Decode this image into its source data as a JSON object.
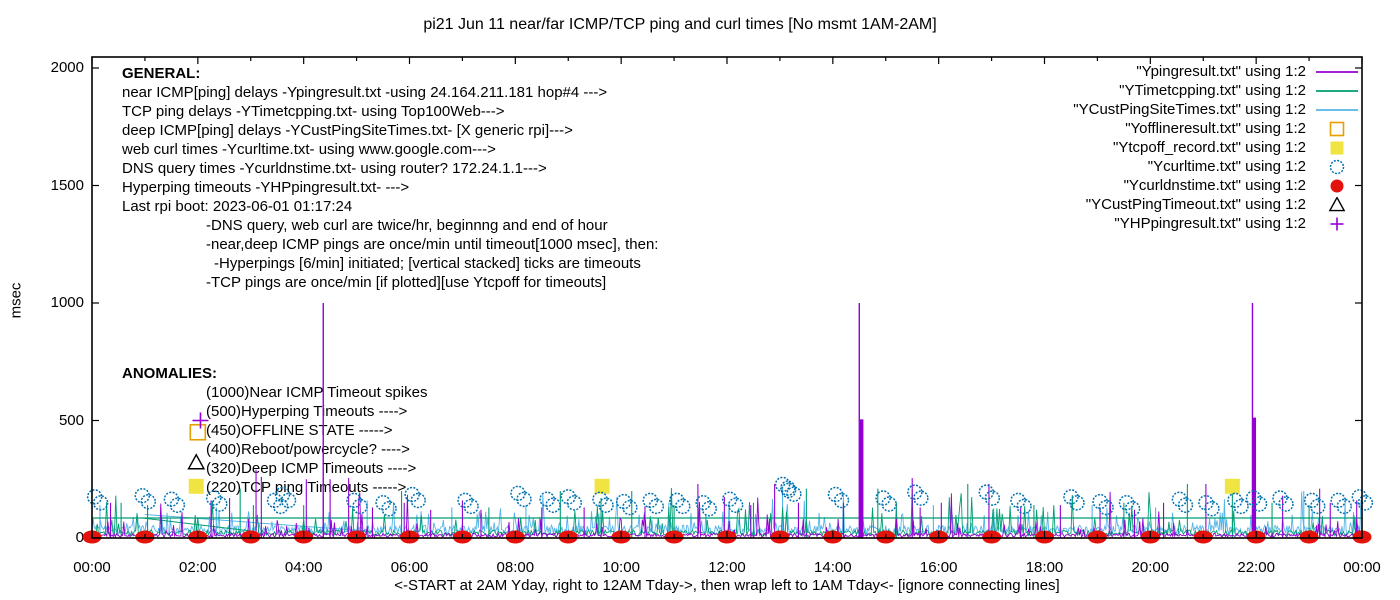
{
  "palette": {
    "purple": "#9400d3",
    "teal": "#009e73",
    "light_blue": "#56b4e9",
    "orange": "#e69f00",
    "yellow": "#f0e442",
    "blue": "#0072b2",
    "red": "#e3120b",
    "black": "#000000",
    "axis": "#000000",
    "background": "#ffffff"
  },
  "title": "pi21 Jun 11  near/far ICMP/TCP ping and curl times [No msmt 1AM-2AM]",
  "axes": {
    "y_label": "msec",
    "x_label": "<-START at 2AM Yday, right to 12AM Tday->, then wrap left to 1AM Tday<- [ignore connecting lines]",
    "x_ticks": [
      "00:00",
      "02:00",
      "04:00",
      "06:00",
      "08:00",
      "10:00",
      "12:00",
      "14:00",
      "16:00",
      "18:00",
      "20:00",
      "22:00",
      "00:00"
    ],
    "y_ticks": [
      "0",
      "500",
      "1000",
      "1500",
      "2000"
    ]
  },
  "general": {
    "heading": "GENERAL:",
    "lines": [
      "near ICMP[ping] delays -Ypingresult.txt -using 24.164.211.181 hop#4 --->",
      "TCP ping delays -YTimetcpping.txt- using Top100Web--->",
      "deep ICMP[ping] delays -YCustPingSiteTimes.txt- [X generic rpi]--->",
      "web curl times -Ycurltime.txt- using www.google.com--->",
      "DNS query times -Ycurldnstime.txt- using router? 172.24.1.1--->",
      "Hyperping timeouts -YHPpingresult.txt- --->",
      "Last rpi boot: 2023-06-01 01:17:24"
    ],
    "notes": [
      "-DNS query, web curl are twice/hr, beginnng and end of hour",
      "-near,deep ICMP pings are once/min until timeout[1000 msec], then:",
      "-Hyperpings [6/min] initiated; [vertical stacked] ticks are timeouts",
      "-TCP pings are once/min [if plotted][use Ytcpoff for timeouts]"
    ]
  },
  "anomalies": {
    "heading": "ANOMALIES:",
    "lines": [
      "(1000)Near ICMP Timeout spikes",
      "(500)Hyperping Timeouts ---->",
      "(450)OFFLINE STATE ----->",
      "(400)Reboot/powercycle? ---->",
      "(320)Deep ICMP Timeouts ---->",
      "(220)TCP ping Timeouts ----->"
    ]
  },
  "legend": {
    "entries": [
      {
        "label": "\"Ypingresult.txt\" using 1:2",
        "marker": "line",
        "color": "purple"
      },
      {
        "label": "\"YTimetcpping.txt\" using 1:2",
        "marker": "line",
        "color": "teal"
      },
      {
        "label": "\"YCustPingSiteTimes.txt\" using 1:2",
        "marker": "line",
        "color": "light_blue"
      },
      {
        "label": "\"Yofflineresult.txt\" using 1:2",
        "marker": "open-square",
        "color": "orange"
      },
      {
        "label": "\"Ytcpoff_record.txt\" using 1:2",
        "marker": "filled-square",
        "color": "yellow"
      },
      {
        "label": "\"Ycurltime.txt\" using 1:2",
        "marker": "open-circle",
        "color": "blue"
      },
      {
        "label": "\"Ycurldnstime.txt\" using 1:2",
        "marker": "filled-circle",
        "color": "red"
      },
      {
        "label": "\"YCustPingTimeout.txt\" using 1:2",
        "marker": "open-triangle",
        "color": "black"
      },
      {
        "label": "\"YHPpingresult.txt\" using 1:2",
        "marker": "plus",
        "color": "purple"
      }
    ]
  },
  "chart_data": {
    "type": "line",
    "title": "pi21 Jun 11  near/far ICMP/TCP ping and curl times [No msmt 1AM-2AM]",
    "xlabel": "<-START at 2AM Yday, right to 12AM Tday->, then wrap left to 1AM Tday<- [ignore connecting lines]",
    "ylabel": "msec",
    "x_unit": "hours",
    "xlim": [
      0,
      24
    ],
    "ylim": [
      0,
      2047
    ],
    "x_tick_hours": [
      0,
      2,
      4,
      6,
      8,
      10,
      12,
      14,
      16,
      18,
      20,
      22,
      24
    ],
    "y_tick_values": [
      0,
      500,
      1000,
      1500,
      2000
    ],
    "grid": false,
    "legend_position": "top-right",
    "series": [
      {
        "name": "Ypingresult.txt",
        "desc": "near ICMP ping delays",
        "color": "purple",
        "style": "noisy-line",
        "noise": {
          "seed": 11,
          "step": 0.02,
          "base": 4,
          "amp": 16,
          "p1": 0.06,
          "lo1": 28,
          "hi1": 85,
          "p2": 0.012,
          "lo2": 95,
          "hi2": 215
        },
        "spikes": [
          [
            0.35,
            150
          ],
          [
            2.25,
            160
          ],
          [
            2.6,
            170
          ],
          [
            3.1,
            290
          ],
          [
            3.2,
            260
          ],
          [
            4.05,
            250
          ],
          [
            4.5,
            250
          ],
          [
            4.85,
            255
          ],
          [
            5.3,
            130
          ],
          [
            5.9,
            150
          ],
          [
            6.4,
            120
          ],
          [
            7.0,
            160
          ],
          [
            7.35,
            120
          ],
          [
            8.5,
            130
          ],
          [
            9.3,
            130
          ],
          [
            10.45,
            135
          ],
          [
            11.45,
            230
          ],
          [
            11.95,
            175
          ],
          [
            12.45,
            140
          ],
          [
            12.9,
            230
          ],
          [
            13.35,
            150
          ],
          [
            14.2,
            150
          ],
          [
            15.5,
            255
          ],
          [
            15.65,
            130
          ],
          [
            16.05,
            150
          ],
          [
            16.95,
            230
          ],
          [
            17.55,
            130
          ],
          [
            18.3,
            140
          ],
          [
            19.05,
            130
          ],
          [
            19.7,
            120
          ],
          [
            20.25,
            150
          ],
          [
            21.05,
            230
          ],
          [
            22.5,
            180
          ],
          [
            23.2,
            210
          ],
          [
            23.4,
            150
          ],
          [
            23.9,
            160
          ]
        ],
        "timeout_spikes": [
          [
            4.37,
            1000
          ],
          [
            14.5,
            1000
          ],
          [
            21.93,
            1000
          ]
        ]
      },
      {
        "name": "YTimetcpping.txt",
        "desc": "TCP ping delays",
        "color": "teal",
        "style": "noisy-line",
        "noise": {
          "seed": 22,
          "step": 0.025,
          "base": 10,
          "amp": 24,
          "p1": 0.05,
          "lo1": 50,
          "hi1": 140,
          "p2": 0.008,
          "lo2": 150,
          "hi2": 220
        },
        "plateau": 85,
        "connecting_line": [
          [
            0.95,
            85
          ],
          [
            3.0,
            30
          ]
        ],
        "spikes": [
          [
            0.55,
            150
          ],
          [
            1.05,
            140
          ],
          [
            2.8,
            210
          ],
          [
            3.05,
            140
          ],
          [
            4.0,
            140
          ],
          [
            5.85,
            200
          ],
          [
            7.5,
            130
          ],
          [
            8.85,
            200
          ],
          [
            9.62,
            170
          ],
          [
            10.2,
            200
          ],
          [
            11.0,
            140
          ],
          [
            12.5,
            150
          ],
          [
            13.5,
            210
          ],
          [
            14.85,
            210
          ],
          [
            15.2,
            150
          ],
          [
            16.55,
            230
          ],
          [
            17.8,
            140
          ],
          [
            19.5,
            150
          ],
          [
            20.7,
            230
          ],
          [
            21.55,
            235
          ],
          [
            22.3,
            150
          ],
          [
            23.0,
            140
          ]
        ]
      },
      {
        "name": "YCustPingSiteTimes.txt",
        "desc": "deep ICMP ping delays",
        "color": "light_blue",
        "style": "noisy-line",
        "noise": {
          "seed": 33,
          "step": 0.02,
          "base": 14,
          "amp": 40,
          "p1": 0.08,
          "lo1": 60,
          "hi1": 115,
          "p2": 0.01,
          "lo2": 120,
          "hi2": 200
        },
        "connecting_line": [
          [
            1.0,
            100
          ],
          [
            5.2,
            30
          ]
        ],
        "spikes": [
          [
            0.15,
            140
          ],
          [
            2.35,
            130
          ],
          [
            5.2,
            160
          ],
          [
            6.8,
            130
          ],
          [
            8.2,
            140
          ],
          [
            10.9,
            150
          ],
          [
            13.05,
            215
          ],
          [
            15.9,
            140
          ],
          [
            18.9,
            140
          ],
          [
            20.1,
            130
          ],
          [
            22.9,
            200
          ]
        ]
      },
      {
        "name": "Yofflineresult.txt",
        "desc": "offline state marker",
        "color": "orange",
        "style": "points",
        "marker": "open-square",
        "points": [
          [
            2.0,
            450
          ]
        ]
      },
      {
        "name": "Ytcpoff_record.txt",
        "desc": "TCP ping timeouts",
        "color": "yellow",
        "style": "points",
        "marker": "filled-square",
        "points": [
          [
            1.97,
            220
          ],
          [
            9.64,
            220
          ],
          [
            21.55,
            220
          ]
        ]
      },
      {
        "name": "Ycurltime.txt",
        "desc": "web curl times",
        "color": "blue",
        "style": "points",
        "marker": "open-circle",
        "paired": true,
        "points": [
          [
            0.05,
            175
          ],
          [
            0.95,
            180
          ],
          [
            1.5,
            165
          ],
          [
            2.3,
            170
          ],
          [
            3.45,
            160
          ],
          [
            3.6,
            185
          ],
          [
            4.95,
            160
          ],
          [
            5.5,
            150
          ],
          [
            6.05,
            185
          ],
          [
            7.05,
            160
          ],
          [
            8.05,
            190
          ],
          [
            8.6,
            165
          ],
          [
            9.0,
            175
          ],
          [
            9.6,
            165
          ],
          [
            10.05,
            155
          ],
          [
            10.55,
            160
          ],
          [
            11.05,
            160
          ],
          [
            11.55,
            150
          ],
          [
            12.05,
            165
          ],
          [
            13.05,
            228
          ],
          [
            13.15,
            212
          ],
          [
            14.05,
            185
          ],
          [
            14.95,
            170
          ],
          [
            15.55,
            195
          ],
          [
            16.9,
            195
          ],
          [
            17.5,
            160
          ],
          [
            18.5,
            175
          ],
          [
            19.05,
            155
          ],
          [
            19.55,
            150
          ],
          [
            20.55,
            165
          ],
          [
            21.05,
            150
          ],
          [
            21.6,
            160
          ],
          [
            21.95,
            170
          ],
          [
            22.45,
            170
          ],
          [
            23.05,
            160
          ],
          [
            23.55,
            160
          ],
          [
            23.95,
            175
          ]
        ]
      },
      {
        "name": "Ycurldnstime.txt",
        "desc": "DNS query times",
        "color": "red",
        "style": "points",
        "marker": "filled-circle",
        "value": 0,
        "points_hours": [
          0,
          1,
          2,
          3,
          4,
          5,
          6,
          7,
          8,
          9,
          10,
          11,
          12,
          13,
          14,
          15,
          16,
          17,
          18,
          19,
          20,
          21,
          22,
          23,
          24
        ]
      },
      {
        "name": "YCustPingTimeout.txt",
        "desc": "deep ICMP timeouts",
        "color": "black",
        "style": "points",
        "marker": "open-triangle",
        "points": [
          [
            1.97,
            320
          ]
        ]
      },
      {
        "name": "YHPpingresult.txt",
        "desc": "hyperping timeouts",
        "color": "purple",
        "style": "points",
        "marker": "plus",
        "points": [
          [
            2.05,
            500
          ]
        ],
        "columns": [
          [
            14.54,
            505
          ],
          [
            21.96,
            512
          ]
        ]
      }
    ]
  }
}
